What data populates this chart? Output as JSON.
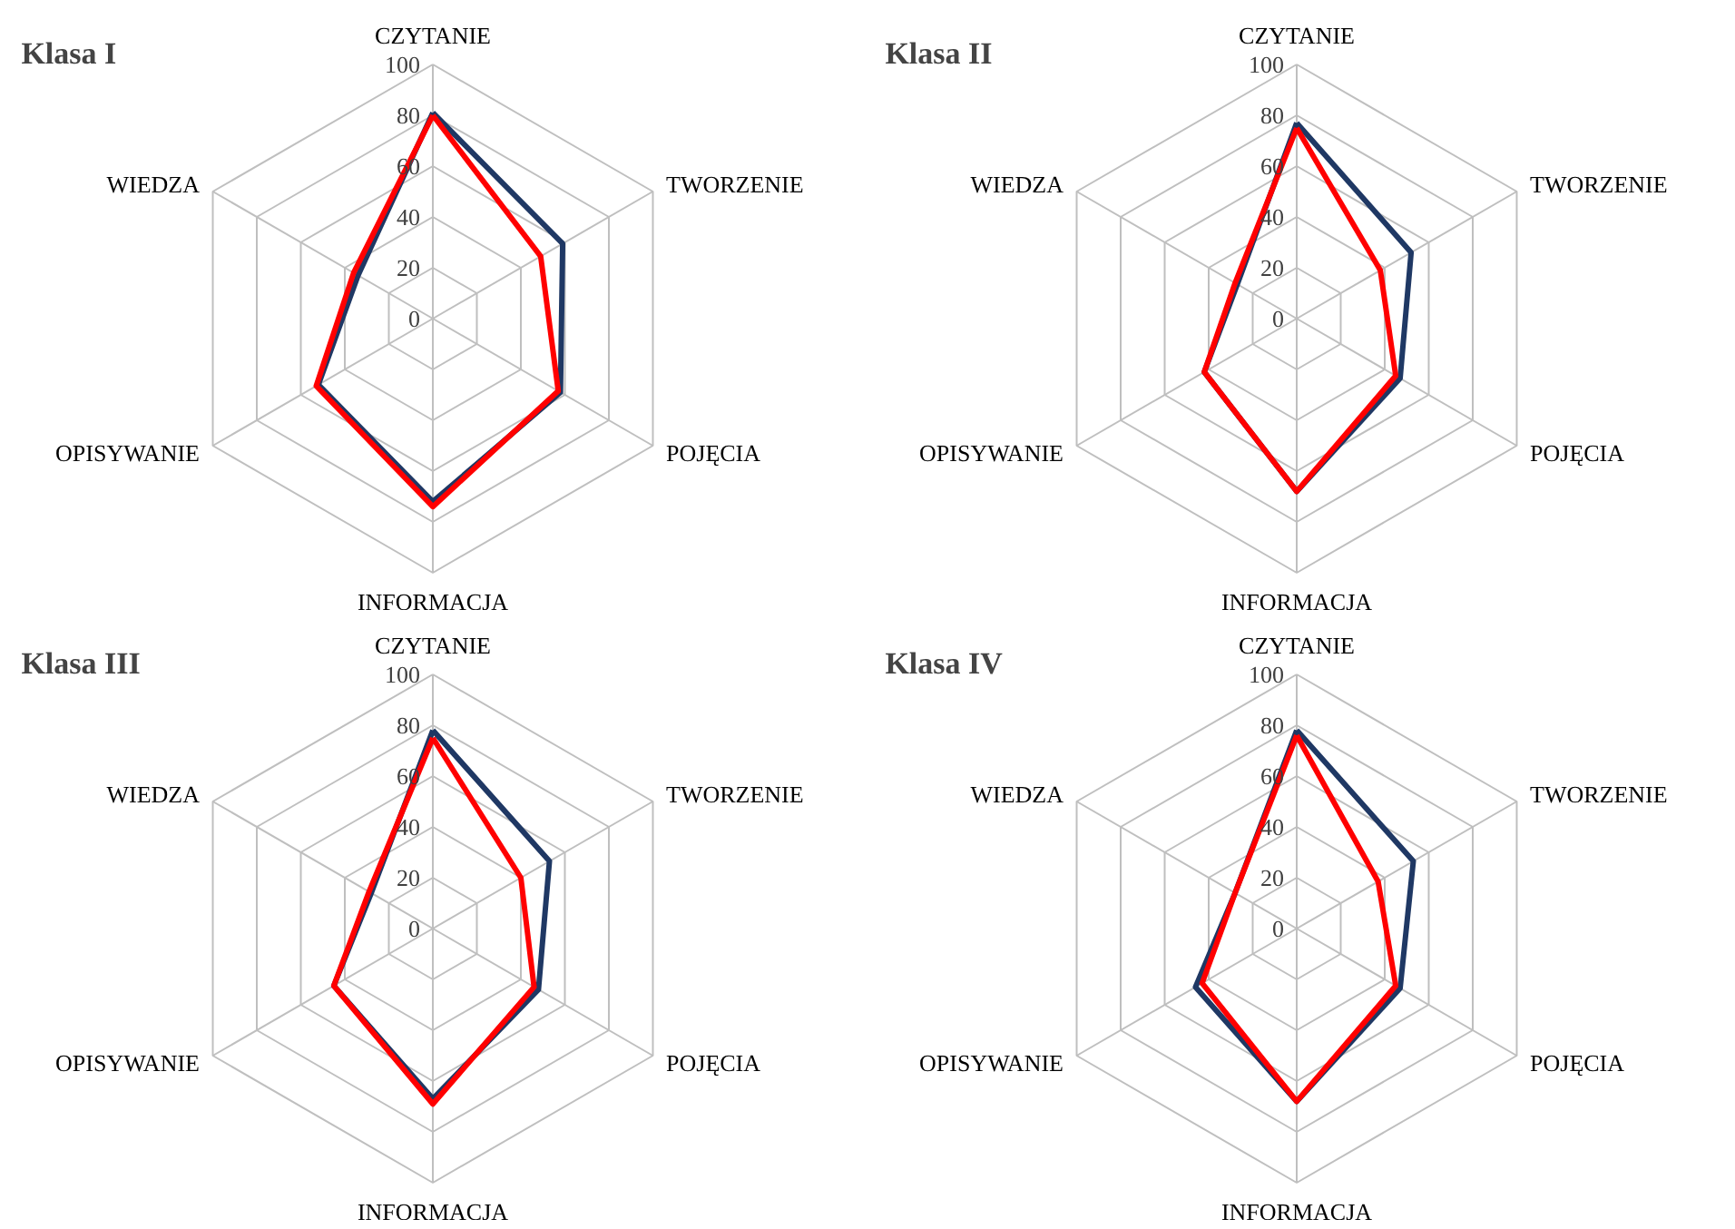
{
  "chart_data": [
    {
      "type": "radar",
      "title": "Klasa I",
      "categories": [
        "CZYTANIE",
        "TWORZENIE",
        "POJĘCIA",
        "INFORMACJA",
        "OPISYWANIE",
        "WIEDZA"
      ],
      "ylim": [
        0,
        100
      ],
      "yticks": [
        0,
        20,
        40,
        60,
        80,
        100
      ],
      "grid": true,
      "line_style": "solid",
      "marker": "none",
      "series": [
        {
          "color": "#1f3864",
          "values": [
            81,
            59,
            58,
            72,
            52,
            34
          ]
        },
        {
          "color": "#ff0000",
          "values": [
            80,
            49,
            57,
            74,
            53,
            36
          ]
        }
      ]
    },
    {
      "type": "radar",
      "title": "Klasa II",
      "categories": [
        "CZYTANIE",
        "TWORZENIE",
        "POJĘCIA",
        "INFORMACJA",
        "OPISYWANIE",
        "WIEDZA"
      ],
      "ylim": [
        0,
        100
      ],
      "yticks": [
        0,
        20,
        40,
        60,
        80,
        100
      ],
      "grid": true,
      "line_style": "solid",
      "marker": "none",
      "series": [
        {
          "color": "#1f3864",
          "values": [
            77,
            52,
            47,
            68,
            42,
            27
          ]
        },
        {
          "color": "#ff0000",
          "values": [
            75,
            38,
            45,
            68,
            42,
            28
          ]
        }
      ]
    },
    {
      "type": "radar",
      "title": "Klasa III",
      "categories": [
        "CZYTANIE",
        "TWORZENIE",
        "POJĘCIA",
        "INFORMACJA",
        "OPISYWANIE",
        "WIEDZA"
      ],
      "ylim": [
        0,
        100
      ],
      "yticks": [
        0,
        20,
        40,
        60,
        80,
        100
      ],
      "grid": true,
      "line_style": "solid",
      "marker": "none",
      "series": [
        {
          "color": "#1f3864",
          "values": [
            78,
            53,
            48,
            67,
            45,
            28
          ]
        },
        {
          "color": "#ff0000",
          "values": [
            75,
            40,
            46,
            69,
            45,
            29
          ]
        }
      ]
    },
    {
      "type": "radar",
      "title": "Klasa IV",
      "categories": [
        "CZYTANIE",
        "TWORZENIE",
        "POJĘCIA",
        "INFORMACJA",
        "OPISYWANIE",
        "WIEDZA"
      ],
      "ylim": [
        0,
        100
      ],
      "yticks": [
        0,
        20,
        40,
        60,
        80,
        100
      ],
      "grid": true,
      "line_style": "solid",
      "marker": "none",
      "series": [
        {
          "color": "#1f3864",
          "values": [
            78,
            53,
            47,
            68,
            46,
            28
          ]
        },
        {
          "color": "#ff0000",
          "values": [
            76,
            37,
            45,
            68,
            43,
            28
          ]
        }
      ]
    }
  ]
}
